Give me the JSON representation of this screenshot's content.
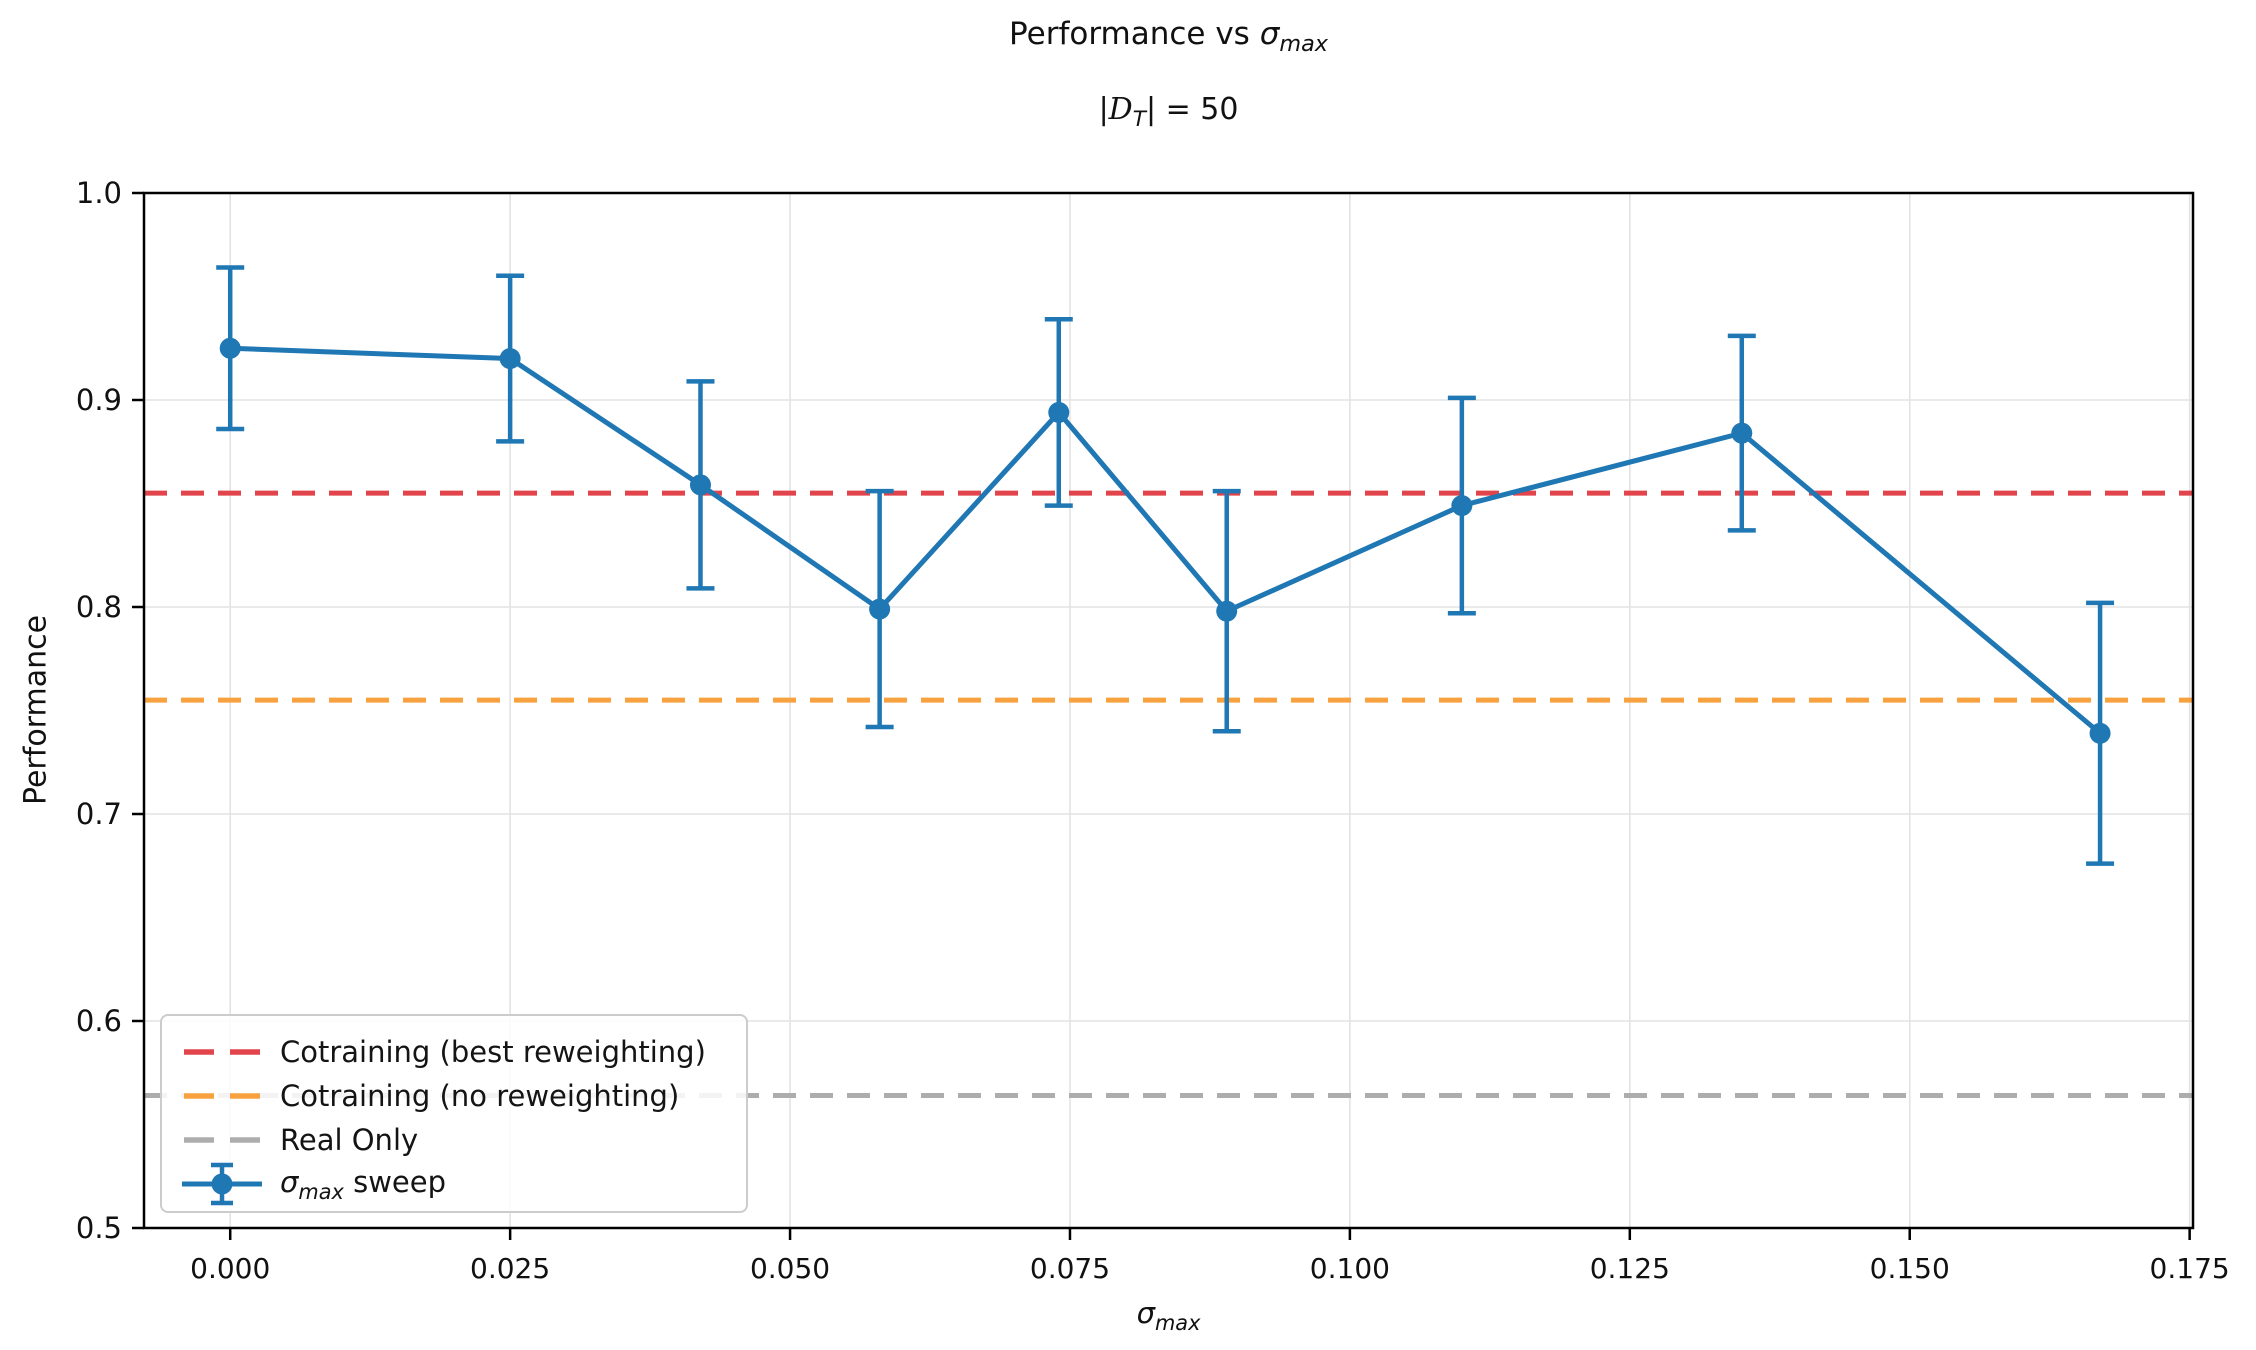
{
  "header": {
    "title_prefix": "Performance vs ",
    "title_sigma": "σ",
    "title_sigma_sub": "max",
    "subtitle_open": "|",
    "subtitle_set_symbol": "D",
    "subtitle_set_sub": "T",
    "subtitle_close": "| = 50"
  },
  "axes": {
    "y_label": "Performance",
    "x_label_sigma": "σ",
    "x_label_sub": "max"
  },
  "chart_data": {
    "type": "line",
    "title": "Performance vs σ_max",
    "subtitle": "|D_T| = 50",
    "xlabel": "σ_max",
    "ylabel": "Performance",
    "grid": true,
    "legend_position": "lower left",
    "xlim": [
      -0.0077,
      0.1753
    ],
    "ylim": [
      0.5,
      1.0
    ],
    "x_ticks": [
      {
        "value": 0.0,
        "label": "0.000"
      },
      {
        "value": 0.025,
        "label": "0.025"
      },
      {
        "value": 0.05,
        "label": "0.050"
      },
      {
        "value": 0.075,
        "label": "0.075"
      },
      {
        "value": 0.1,
        "label": "0.100"
      },
      {
        "value": 0.125,
        "label": "0.125"
      },
      {
        "value": 0.15,
        "label": "0.150"
      },
      {
        "value": 0.175,
        "label": "0.175"
      }
    ],
    "y_ticks": [
      {
        "value": 1.0,
        "label": "1.0"
      },
      {
        "value": 0.9,
        "label": "0.9"
      },
      {
        "value": 0.8,
        "label": "0.8"
      },
      {
        "value": 0.7,
        "label": "0.7"
      },
      {
        "value": 0.6,
        "label": "0.6"
      },
      {
        "value": 0.5,
        "label": "0.5"
      }
    ],
    "series": [
      {
        "name": "σ_max sweep",
        "legend_label_parts": {
          "sigma": "σ",
          "sub": "max",
          "rest": " sweep"
        },
        "color": "#1f77b4",
        "marker": "circle",
        "x": [
          0.0,
          0.025,
          0.042,
          0.058,
          0.074,
          0.089,
          0.11,
          0.135,
          0.167
        ],
        "y": [
          0.925,
          0.92,
          0.859,
          0.799,
          0.894,
          0.798,
          0.849,
          0.884,
          0.739
        ],
        "yerr": [
          0.039,
          0.04,
          0.05,
          0.057,
          0.045,
          0.058,
          0.052,
          0.047,
          0.063
        ]
      }
    ],
    "baselines": [
      {
        "label": "Cotraining (best reweighting)",
        "value": 0.855,
        "color": "#e2444b",
        "style": "dashed"
      },
      {
        "label": "Cotraining (no reweighting)",
        "value": 0.755,
        "color": "#f8a23f",
        "style": "dashed"
      },
      {
        "label": "Real Only",
        "value": 0.564,
        "color": "#adadad",
        "style": "dashed"
      }
    ]
  },
  "style": {
    "background": "#ffffff",
    "grid_color": "#e3e3e3",
    "spine_color": "#000000",
    "text_color": "#111111"
  }
}
